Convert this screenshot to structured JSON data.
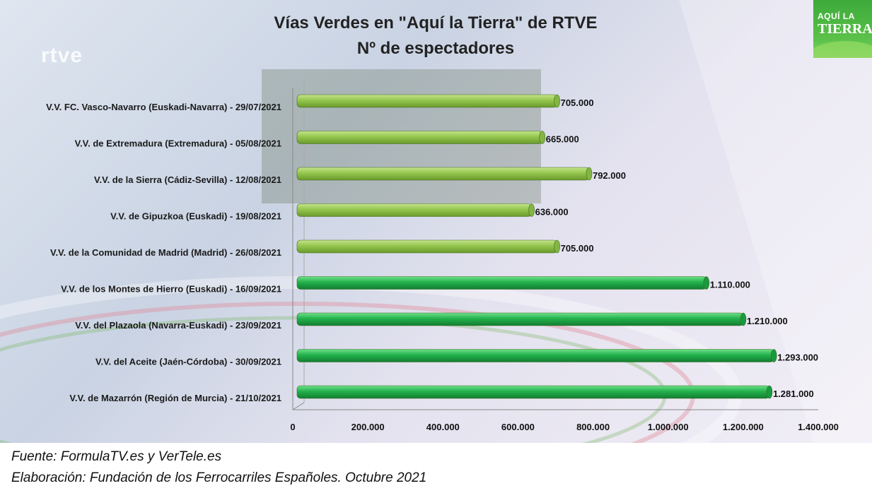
{
  "logo": {
    "line1": "AQUÍ LA",
    "line2": "TIERRA"
  },
  "watermark": "rtve",
  "colors": {
    "bar_light": "#8dc34a",
    "bar_dark": "#22b14c"
  },
  "chart_data": {
    "type": "bar",
    "orientation": "horizontal",
    "title": [
      "Vías Verdes en \"Aquí la Tierra\" de RTVE",
      "Nº de espectadores"
    ],
    "categories": [
      "V.V. FC. Vasco-Navarro (Euskadi-Navarra) - 29/07/2021",
      "V.V. de Extremadura (Extremadura) - 05/08/2021",
      "V.V. de la Sierra (Cádiz-Sevilla) - 12/08/2021",
      "V.V. de Gipuzkoa (Euskadi) - 19/08/2021",
      "V.V. de la Comunidad de Madrid (Madrid) - 26/08/2021",
      "V.V. de los Montes de Hierro (Euskadi) - 16/09/2021",
      "V.V. del Plazaola (Navarra-Euskadi) - 23/09/2021",
      "V.V. del Aceite (Jaén-Córdoba) - 30/09/2021",
      "V.V. de Mazarrón (Región de Murcia) - 21/10/2021"
    ],
    "values": [
      705000,
      665000,
      792000,
      636000,
      705000,
      1110000,
      1210000,
      1293000,
      1281000
    ],
    "value_labels": [
      "705.000",
      "665.000",
      "792.000",
      "636.000",
      "705.000",
      "1.110.000",
      "1.210.000",
      "1.293.000",
      "1.281.000"
    ],
    "bar_colors": [
      "light",
      "light",
      "light",
      "light",
      "light",
      "dark",
      "dark",
      "dark",
      "dark"
    ],
    "xlim": [
      0,
      1400000
    ],
    "xticks": [
      0,
      200000,
      400000,
      600000,
      800000,
      1000000,
      1200000,
      1400000
    ],
    "xtick_labels": [
      "0",
      "200.000",
      "400.000",
      "600.000",
      "800.000",
      "1.000.000",
      "1.200.000",
      "1.400.000"
    ],
    "grid": false,
    "legend": "none"
  },
  "footer": {
    "source": "Fuente: FormulaTV.es y VerTele.es",
    "credit": "Elaboración: Fundación de los Ferrocarriles Españoles. Octubre 2021"
  }
}
